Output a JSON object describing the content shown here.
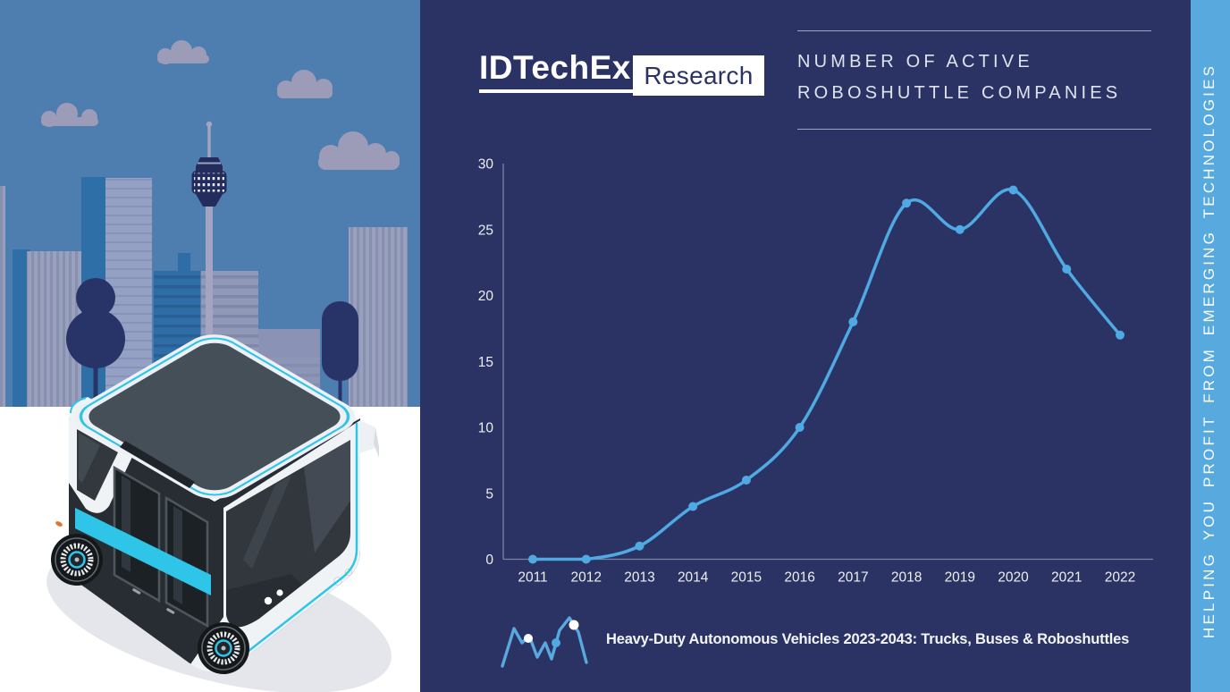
{
  "brand": {
    "logo_primary": "IDTechEx",
    "logo_secondary": "Research"
  },
  "header": {
    "title_line1": "NUMBER OF ACTIVE",
    "title_line2": "ROBOSHUTTLE COMPANIES"
  },
  "side_banner": {
    "text": "HELPING YOU PROFIT FROM EMERGING TECHNOLOGIES"
  },
  "footer": {
    "report_title": "Heavy-Duty Autonomous Vehicles 2023-2043: Trucks, Buses & Roboshuttles"
  },
  "colors": {
    "panel_bg": "#2A3364",
    "sky": "#4E7DAF",
    "banner_bg": "#57A9DE",
    "line": "#4FA9E2",
    "axis": "#B9BFD2",
    "cyan_accent": "#2FC5E8",
    "label": "#EDEFF5"
  },
  "chart_data": {
    "type": "line",
    "title": "NUMBER OF ACTIVE ROBOSHUTTLE COMPANIES",
    "categories": [
      "2011",
      "2012",
      "2013",
      "2014",
      "2015",
      "2016",
      "2017",
      "2018",
      "2019",
      "2020",
      "2021",
      "2022"
    ],
    "series": [
      {
        "name": "Number of active roboshuttle companies",
        "values": [
          0,
          0,
          1,
          4,
          6,
          10,
          18,
          27,
          25,
          28,
          22,
          17
        ]
      }
    ],
    "xlabel": "",
    "ylabel": "",
    "ylim": [
      0,
      30
    ],
    "yticks": [
      0,
      5,
      10,
      15,
      20,
      25,
      30
    ],
    "grid": false,
    "legend": "none",
    "marker": "circle",
    "line_color": "#4FA9E2",
    "label_color": "#EDEFF5"
  },
  "illustration": {
    "subject": "Isometric autonomous roboshuttle in front of a city skyline with TV tower, clouds and trees"
  }
}
